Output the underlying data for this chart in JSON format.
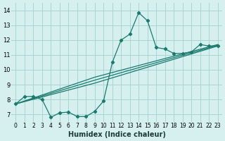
{
  "xlabel": "Humidex (Indice chaleur)",
  "ylabel": "",
  "bg_color": "#d6f0f0",
  "grid_color": "#aad4d4",
  "line_color": "#1a7a6e",
  "xlim": [
    -0.5,
    23.5
  ],
  "ylim": [
    6.5,
    14.5
  ],
  "xticks": [
    0,
    1,
    2,
    3,
    4,
    5,
    6,
    7,
    8,
    9,
    10,
    11,
    12,
    13,
    14,
    15,
    16,
    17,
    18,
    19,
    20,
    21,
    22,
    23
  ],
  "yticks": [
    7,
    8,
    9,
    10,
    11,
    12,
    13,
    14
  ],
  "line1_x": [
    0,
    1,
    2,
    3,
    4,
    5,
    6,
    7,
    8,
    9,
    10,
    11,
    12,
    13,
    14,
    15,
    16,
    17,
    18,
    19,
    20,
    21,
    22,
    23
  ],
  "line1_y": [
    7.7,
    8.2,
    8.2,
    8.0,
    6.8,
    7.1,
    7.15,
    6.85,
    6.85,
    7.2,
    7.9,
    10.5,
    12.0,
    12.4,
    13.85,
    13.3,
    11.5,
    11.4,
    11.1,
    11.1,
    11.2,
    11.7,
    11.6,
    11.6
  ],
  "line2_x": [
    0,
    9,
    23
  ],
  "line2_y": [
    7.7,
    9.1,
    11.6
  ],
  "line3_x": [
    0,
    9,
    23
  ],
  "line3_y": [
    7.7,
    9.3,
    11.65
  ],
  "line4_x": [
    0,
    9,
    23
  ],
  "line4_y": [
    7.7,
    9.5,
    11.7
  ]
}
